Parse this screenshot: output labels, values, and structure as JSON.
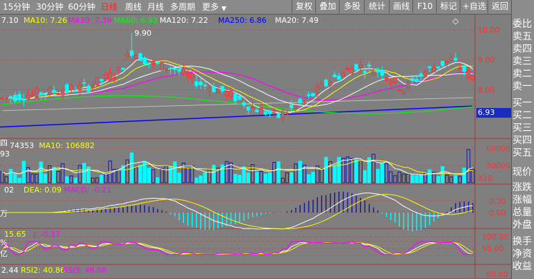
{
  "toolbar": {
    "periods": [
      {
        "label": "15分钟",
        "active": false
      },
      {
        "label": "30分钟",
        "active": false
      },
      {
        "label": "60分钟",
        "active": false
      },
      {
        "label": "日线",
        "active": true
      },
      {
        "label": "周线",
        "active": false
      },
      {
        "label": "月线",
        "active": false
      },
      {
        "label": "多周期",
        "active": false
      },
      {
        "label": "更多",
        "active": false
      }
    ],
    "buttons": [
      "复权",
      "叠加",
      "多股",
      "统计",
      "画线",
      "F10",
      "标记",
      "+自选",
      "返回"
    ]
  },
  "orderbook": {
    "rows": [
      "委比",
      "卖五",
      "卖四",
      "卖三",
      "卖二",
      "卖一",
      "买一",
      "买二",
      "买三",
      "买四",
      "买五",
      "现价",
      "涨跌",
      "涨幅",
      "总量",
      "外盘",
      "换手",
      "净资",
      "收益"
    ]
  },
  "price_pane": {
    "legend": [
      {
        "text": "7.10",
        "color": "#ffffff"
      },
      {
        "text": "MA10: 7.26",
        "color": "#ffff00"
      },
      {
        "text": "MA30: 7.39",
        "color": "#ff00ff"
      },
      {
        "text": "MA60: 6.93",
        "color": "#00ff00"
      },
      {
        "text": "MA120: 7.22",
        "color": "#ffffff"
      },
      {
        "text": "MA250: 6.86",
        "color": "#0000ff"
      },
      {
        "text": "MA20: 7.49",
        "color": "#ffffff"
      }
    ],
    "y_ticks": [
      "10.00",
      "9.00",
      "8.00"
    ],
    "peak_label": "9.90",
    "current_price": "6.93"
  },
  "volume_pane": {
    "legend": [
      {
        "text": "74353",
        "color": "#ffffff"
      },
      {
        "text": "MA10: 106882",
        "color": "#ffff00"
      }
    ],
    "y_ticks": [
      "60000",
      "30000"
    ],
    "unit": "X10"
  },
  "macd_pane": {
    "legend": [
      {
        "text": "02",
        "color": "#ffffff"
      },
      {
        "text": "DEA: 0.09",
        "color": "#ffff00"
      },
      {
        "text": "MACD: -0.21",
        "color": "#ff00ff"
      }
    ],
    "y_ticks": [
      "0.30",
      "0.00"
    ]
  },
  "kdj_pane": {
    "legend": [
      {
        "text": "15.65",
        "color": "#ffff00"
      },
      {
        "text": "J: -0.17",
        "color": "#ff00ff"
      }
    ],
    "y_ticks": [
      "100.00",
      "50.00"
    ]
  },
  "rsi_pane": {
    "legend": [
      {
        "text": "2.44",
        "color": "#ffffff"
      },
      {
        "text": "RSI2: 40.86",
        "color": "#ffff00"
      },
      {
        "text": "RSI3: 46.68",
        "color": "#ff00ff"
      }
    ],
    "y_ticks": [
      "80.00"
    ]
  },
  "left_gutter": [
    "四",
    "93",
    "万",
    "%",
    "亿"
  ],
  "colors": {
    "up": "#ff3030",
    "down": "#00ffff",
    "vol_up": "#1a1a8c",
    "grid": "#b04040",
    "ma_white": "#ffffff",
    "ma_yellow": "#ffff00",
    "ma_magenta": "#ff00ff",
    "ma_green": "#00ff00",
    "ma_blue": "#0000ff"
  }
}
